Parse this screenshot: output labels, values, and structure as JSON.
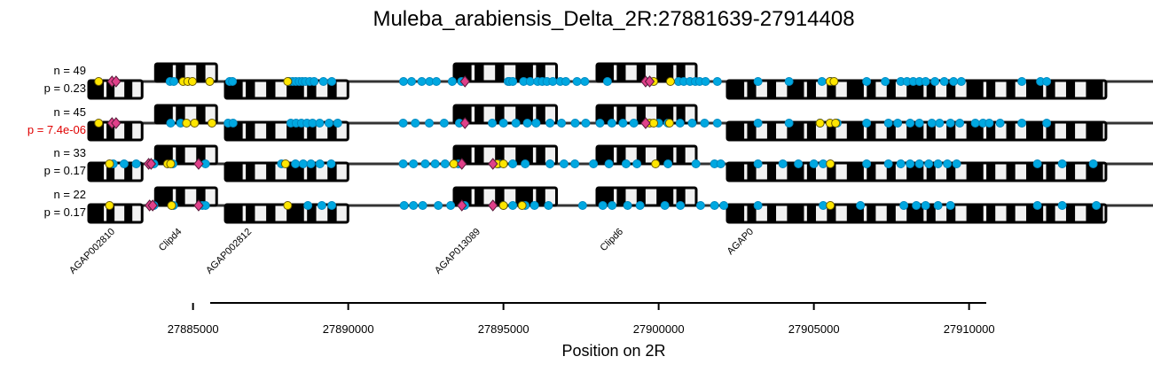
{
  "chart_data": {
    "type": "scatter",
    "title": "Muleba_arabiensis_Delta_2R:27881639-27914408",
    "xlabel": "Position on 2R",
    "xlim": [
      27881639,
      27914408
    ],
    "xticks": [
      "27885000",
      "27890000",
      "27895000",
      "27900000",
      "27905000",
      "27910000"
    ],
    "tick_values": [
      27885000,
      27890000,
      27895000,
      27900000,
      27905000,
      27910000
    ],
    "colors": {
      "snp": "#00a8e1",
      "yellow": "#ffe600",
      "pink": "#e0408a",
      "track": "#000000",
      "highlight": "#e00000"
    },
    "genes": [
      {
        "name": "AGAP002810",
        "start": 27881639,
        "end": 27883360,
        "strand": "-"
      },
      {
        "name": "Clipd4",
        "start": 27883790,
        "end": 27885760,
        "strand": "+"
      },
      {
        "name": "AGAP002812",
        "start": 27886040,
        "end": 27889990,
        "strand": "-"
      },
      {
        "name": "AGAP013089",
        "start": 27893410,
        "end": 27896710,
        "strand": "+"
      },
      {
        "name": "Clipd6",
        "start": 27898010,
        "end": 27901210,
        "strand": "+"
      },
      {
        "name": "AGAP0",
        "start": 27902210,
        "end": 27914408,
        "strand": "-"
      }
    ],
    "series": [
      {
        "n": "n = 49",
        "p": "p = 0.23",
        "highlight": false,
        "snps": [
          27884260,
          27884380,
          27886180,
          27886270,
          27888100,
          27888210,
          27888310,
          27888420,
          27888520,
          27888620,
          27888760,
          27888900,
          27889200,
          27889470,
          27891780,
          27892040,
          27892370,
          27892620,
          27892840,
          27893350,
          27893650,
          27895150,
          27895200,
          27895300,
          27895650,
          27895860,
          27896100,
          27896250,
          27896400,
          27896590,
          27896830,
          27897010,
          27897370,
          27897620,
          27898350,
          27899710,
          27900640,
          27900810,
          27901010,
          27901180,
          27901320,
          27901510,
          27901890,
          27903200,
          27904200,
          27905260,
          27905550,
          27906700,
          27907300,
          27907800,
          27908000,
          27908200,
          27908400,
          27908600,
          27908900,
          27909200,
          27909500,
          27909750,
          27911700,
          27912300,
          27912500
        ],
        "yellow": [
          27881960,
          27884680,
          27884830,
          27884980,
          27885540,
          27888050,
          27899840,
          27900380,
          27905520,
          27905650
        ],
        "pink": [
          27882390,
          27882520,
          27893760,
          27899580,
          27899710
        ]
      },
      {
        "n": "n = 45",
        "p": "p = 7.4e-06",
        "highlight": true,
        "snps": [
          27884280,
          27884600,
          27886130,
          27886290,
          27888150,
          27888320,
          27888490,
          27888670,
          27888850,
          27889080,
          27889380,
          27889660,
          27891770,
          27892160,
          27892610,
          27893090,
          27893580,
          27894640,
          27895000,
          27895400,
          27895770,
          27896050,
          27896500,
          27896870,
          27897310,
          27897650,
          27898110,
          27898490,
          27898850,
          27899200,
          27900000,
          27900300,
          27900690,
          27901080,
          27901480,
          27901890,
          27903200,
          27904200,
          27905200,
          27905750,
          27906700,
          27907400,
          27907700,
          27908100,
          27908400,
          27908800,
          27909050,
          27909400,
          27909700,
          27910200,
          27910450,
          27910650,
          27911000,
          27911700,
          27912500
        ],
        "yellow": [
          27881960,
          27884790,
          27885050,
          27885610,
          27899710,
          27899840,
          27900350,
          27905200,
          27905520,
          27905700
        ],
        "pink": [
          27882390,
          27882520,
          27893760,
          27899580
        ]
      },
      {
        "n": "n = 33",
        "p": "p = 0.17",
        "highlight": false,
        "snps": [
          27882430,
          27882780,
          27883170,
          27883740,
          27884350,
          27885400,
          27887850,
          27888300,
          27888550,
          27888800,
          27889090,
          27889450,
          27891770,
          27892100,
          27892480,
          27892800,
          27893120,
          27893550,
          27894850,
          27895300,
          27895700,
          27896500,
          27896950,
          27897300,
          27897900,
          27898400,
          27898950,
          27899300,
          27900300,
          27901200,
          27901800,
          27902000,
          27903200,
          27904000,
          27904500,
          27905000,
          27905300,
          27906700,
          27907400,
          27907800,
          27908100,
          27908400,
          27908700,
          27909000,
          27909300,
          27909600,
          27912200,
          27913000,
          27914000
        ],
        "yellow": [
          27882310,
          27884180,
          27884280,
          27887980,
          27893400,
          27894800,
          27895000,
          27899900,
          27905530
        ],
        "pink": [
          27883570,
          27883650,
          27885180,
          27893660,
          27894660
        ]
      },
      {
        "n": "n = 22",
        "p": "p = 0.17",
        "highlight": false,
        "snps": [
          27883740,
          27884370,
          27885300,
          27885400,
          27888700,
          27889150,
          27889470,
          27891800,
          27892100,
          27892400,
          27892900,
          27893300,
          27893750,
          27895000,
          27895300,
          27895700,
          27896000,
          27896450,
          27897550,
          27898200,
          27898500,
          27899000,
          27899400,
          27900200,
          27900700,
          27901350,
          27901800,
          27902100,
          27903200,
          27905300,
          27906500,
          27907900,
          27908300,
          27908600,
          27909000,
          27909400,
          27912200,
          27913000,
          27914100
        ],
        "yellow": [
          27882310,
          27884310,
          27888050,
          27895000,
          27895600,
          27905530
        ],
        "pink": [
          27883600,
          27883700,
          27885180,
          27893660,
          27894660
        ]
      }
    ]
  }
}
